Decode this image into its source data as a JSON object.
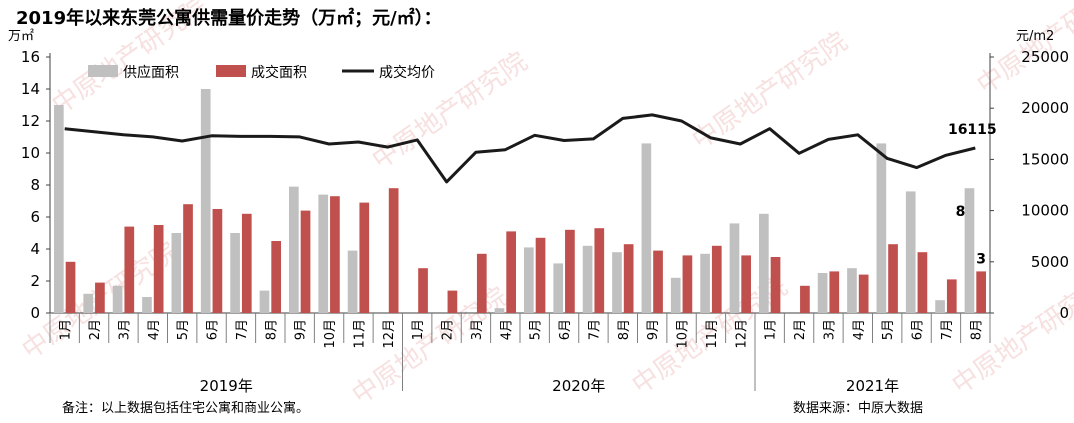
{
  "chart_data": {
    "type": "bar",
    "title": "2019年以来东莞公寓供需量价走势（万㎡；元/㎡）：",
    "y_left_unit": "万㎡",
    "y_right_unit": "元/m2",
    "ylim_left": [
      0,
      16
    ],
    "yticks_left": [
      "0",
      "2",
      "4",
      "6",
      "8",
      "10",
      "12",
      "14",
      "16"
    ],
    "ylim_right": [
      0,
      25000
    ],
    "yticks_right": [
      "0",
      "5000",
      "10000",
      "15000",
      "20000",
      "25000"
    ],
    "categories": [
      "1月",
      "2月",
      "3月",
      "4月",
      "5月",
      "6月",
      "7月",
      "8月",
      "9月",
      "10月",
      "11月",
      "12月",
      "1月",
      "2月",
      "3月",
      "4月",
      "5月",
      "6月",
      "7月",
      "8月",
      "9月",
      "10月",
      "11月",
      "12月",
      "1月",
      "2月",
      "3月",
      "4月",
      "5月",
      "6月",
      "7月",
      "8月"
    ],
    "years": [
      {
        "label": "2019年",
        "start": 0,
        "end": 12
      },
      {
        "label": "2020年",
        "start": 12,
        "end": 24
      },
      {
        "label": "2021年",
        "start": 24,
        "end": 32
      }
    ],
    "series": [
      {
        "name": "供应面积",
        "kind": "bar",
        "axis": "left",
        "color": "#c0c0c0",
        "values": [
          13.0,
          1.2,
          1.7,
          1.0,
          5.0,
          14.0,
          5.0,
          1.4,
          7.9,
          7.4,
          3.9,
          0,
          0,
          0,
          0,
          0.3,
          4.1,
          3.1,
          4.2,
          3.8,
          10.6,
          2.2,
          3.7,
          5.6,
          6.2,
          0,
          2.5,
          2.8,
          10.6,
          7.6,
          0.8,
          7.8
        ]
      },
      {
        "name": "成交面积",
        "kind": "bar",
        "axis": "left",
        "color": "#c0504d",
        "values": [
          3.2,
          1.9,
          5.4,
          5.5,
          6.8,
          6.5,
          6.2,
          4.5,
          6.4,
          7.3,
          6.9,
          7.8,
          2.8,
          1.4,
          3.7,
          5.1,
          4.7,
          5.2,
          5.3,
          4.3,
          3.9,
          3.6,
          4.2,
          3.6,
          3.5,
          1.7,
          2.6,
          2.4,
          4.3,
          3.8,
          2.1,
          2.6
        ]
      },
      {
        "name": "成交均价",
        "kind": "line",
        "axis": "right",
        "color": "#1a1a1a",
        "values": [
          18000,
          17700,
          17400,
          17200,
          16800,
          17300,
          17250,
          17250,
          17200,
          16500,
          16700,
          16200,
          16900,
          12800,
          15700,
          15950,
          17350,
          16850,
          17000,
          19000,
          19350,
          18750,
          17100,
          16500,
          18000,
          15600,
          16950,
          17400,
          15100,
          14200,
          15400,
          16115
        ]
      }
    ],
    "data_labels": [
      {
        "series": 2,
        "index": 31,
        "text": "16115"
      },
      {
        "series": 0,
        "index": 31,
        "text": "8"
      },
      {
        "series": 1,
        "index": 31,
        "text": "3"
      }
    ],
    "watermark": "中原地产研究院",
    "note_left": "备注：以上数据包括住宅公寓和商业公寓。",
    "note_right": "数据来源：中原大数据",
    "legend_position": "top-left",
    "grid": false
  }
}
